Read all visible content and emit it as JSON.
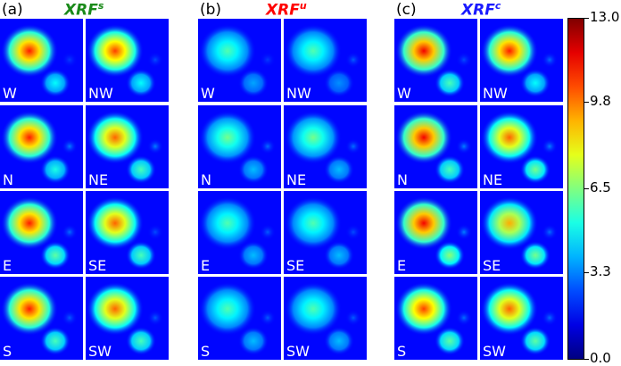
{
  "chart_data": {
    "type": "heatmap",
    "panels": [
      {
        "label": "(a)",
        "title": "XRF",
        "superscript": "s",
        "title_color": "#1a8a1a",
        "tiles": [
          {
            "label": "W",
            "lobe": 1.0,
            "small": 0.55,
            "tiny": 0.15
          },
          {
            "label": "NW",
            "lobe": 0.95,
            "small": 0.55,
            "tiny": 0.2
          },
          {
            "label": "N",
            "lobe": 1.0,
            "small": 0.6,
            "tiny": 0.35
          },
          {
            "label": "NE",
            "lobe": 0.9,
            "small": 0.7,
            "tiny": 0.35
          },
          {
            "label": "E",
            "lobe": 1.0,
            "small": 0.75,
            "tiny": 0.3
          },
          {
            "label": "SE",
            "lobe": 0.9,
            "small": 0.7,
            "tiny": 0.2
          },
          {
            "label": "S",
            "lobe": 1.0,
            "small": 0.7,
            "tiny": 0.25
          },
          {
            "label": "SW",
            "lobe": 0.9,
            "small": 0.7,
            "tiny": 0.25
          }
        ]
      },
      {
        "label": "(b)",
        "title": "XRF",
        "superscript": "u",
        "title_color": "#ff0000",
        "tiles": [
          {
            "label": "W",
            "lobe": 0.45,
            "small": 0.35,
            "tiny": 0.15
          },
          {
            "label": "NW",
            "lobe": 0.45,
            "small": 0.3,
            "tiny": 0.25
          },
          {
            "label": "N",
            "lobe": 0.5,
            "small": 0.4,
            "tiny": 0.3
          },
          {
            "label": "NE",
            "lobe": 0.5,
            "small": 0.4,
            "tiny": 0.3
          },
          {
            "label": "E",
            "lobe": 0.45,
            "small": 0.4,
            "tiny": 0.25
          },
          {
            "label": "SE",
            "lobe": 0.45,
            "small": 0.4,
            "tiny": 0.2
          },
          {
            "label": "S",
            "lobe": 0.45,
            "small": 0.4,
            "tiny": 0.25
          },
          {
            "label": "SW",
            "lobe": 0.45,
            "small": 0.4,
            "tiny": 0.25
          }
        ]
      },
      {
        "label": "(c)",
        "title": "XRF",
        "superscript": "c",
        "title_color": "#1a1aff",
        "tiles": [
          {
            "label": "W",
            "lobe": 1.05,
            "small": 0.7,
            "tiny": 0.2
          },
          {
            "label": "NW",
            "lobe": 1.0,
            "small": 0.55,
            "tiny": 0.3
          },
          {
            "label": "N",
            "lobe": 1.05,
            "small": 0.7,
            "tiny": 0.35
          },
          {
            "label": "NE",
            "lobe": 0.9,
            "small": 0.8,
            "tiny": 0.35
          },
          {
            "label": "E",
            "lobe": 1.05,
            "small": 0.85,
            "tiny": 0.35
          },
          {
            "label": "SE",
            "lobe": 0.8,
            "small": 0.8,
            "tiny": 0.3
          },
          {
            "label": "S",
            "lobe": 0.95,
            "small": 0.75,
            "tiny": 0.3
          },
          {
            "label": "SW",
            "lobe": 0.9,
            "small": 0.75,
            "tiny": 0.3
          }
        ]
      }
    ],
    "colorbar": {
      "min": 0.0,
      "max": 13.0,
      "ticks": [
        "13.0",
        "9.8",
        "6.5",
        "3.3",
        "0.0"
      ],
      "tick_values": [
        13.0,
        9.8,
        6.5,
        3.3,
        0.0
      ],
      "colormap": "jet"
    }
  }
}
